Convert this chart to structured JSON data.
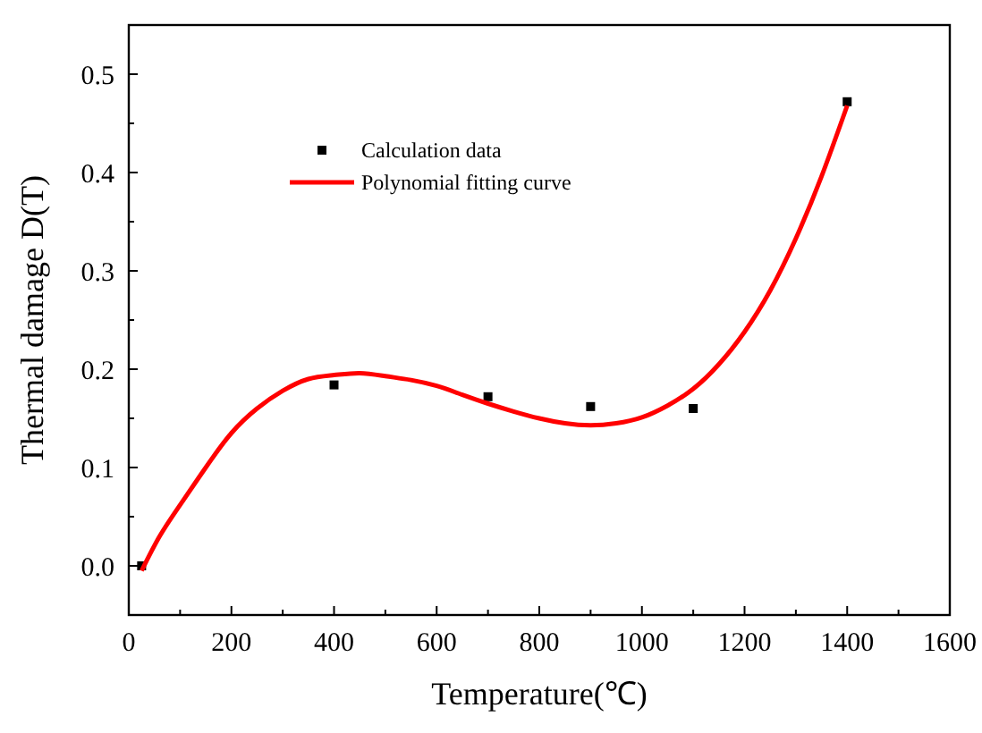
{
  "chart_data": {
    "type": "scatter",
    "xlabel": "Temperature(℃)",
    "ylabel": "Thermal damage D(T)",
    "xlim": [
      0,
      1600
    ],
    "ylim": [
      -0.05,
      0.55
    ],
    "xticks": [
      0,
      200,
      400,
      600,
      800,
      1000,
      1200,
      1400,
      1600
    ],
    "yticks": [
      {
        "value": 0,
        "label": "0.0"
      },
      0.1,
      0.2,
      0.3,
      0.4,
      0.5
    ],
    "grid": false,
    "legend": "top left",
    "series": [
      {
        "name": "Calculation data",
        "color": "#000000",
        "marker": "square",
        "x": [
          25,
          400,
          700,
          900,
          1100,
          1400
        ],
        "values": [
          0,
          0.184,
          0.172,
          0.162,
          0.16,
          0.472
        ]
      },
      {
        "name": "Polynomial fitting curve",
        "type": "line",
        "color": "#ff0000",
        "line_style": "solid",
        "x": [
          25,
          60,
          100,
          150,
          200,
          250,
          300,
          350,
          400,
          450,
          500,
          550,
          600,
          650,
          700,
          750,
          800,
          850,
          900,
          950,
          1000,
          1050,
          1100,
          1150,
          1200,
          1250,
          1300,
          1350,
          1400
        ],
        "values": [
          -0.005,
          0.03,
          0.062,
          0.1,
          0.135,
          0.16,
          0.178,
          0.19,
          0.194,
          0.196,
          0.193,
          0.189,
          0.183,
          0.174,
          0.165,
          0.157,
          0.15,
          0.145,
          0.143,
          0.145,
          0.151,
          0.163,
          0.18,
          0.205,
          0.238,
          0.28,
          0.333,
          0.396,
          0.468
        ]
      }
    ]
  }
}
